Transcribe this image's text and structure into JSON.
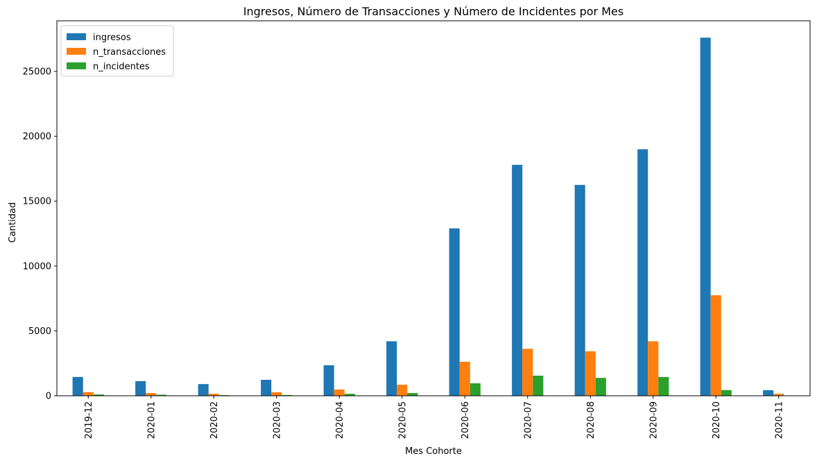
{
  "chart_data": {
    "type": "bar",
    "title": "Ingresos, Número de Transacciones y Número de Incidentes por Mes",
    "xlabel": "Mes Cohorte",
    "ylabel": "Cantidad",
    "ylim": [
      0,
      28900
    ],
    "yticks": [
      0,
      5000,
      10000,
      15000,
      20000,
      25000
    ],
    "legend_position": "top-left",
    "grid": false,
    "categories": [
      "2019-12",
      "2020-01",
      "2020-02",
      "2020-03",
      "2020-04",
      "2020-05",
      "2020-06",
      "2020-07",
      "2020-08",
      "2020-09",
      "2020-10",
      "2020-11"
    ],
    "series": [
      {
        "name": "ingresos",
        "color": "#1f77b4",
        "values": [
          1450,
          1130,
          900,
          1230,
          2350,
          4200,
          12900,
          17800,
          16250,
          19000,
          27600,
          430
        ]
      },
      {
        "name": "n_transacciones",
        "color": "#ff7f0e",
        "values": [
          280,
          210,
          160,
          270,
          480,
          850,
          2620,
          3620,
          3430,
          4200,
          7750,
          150
        ]
      },
      {
        "name": "n_incidentes",
        "color": "#2ca02c",
        "values": [
          100,
          80,
          50,
          60,
          150,
          210,
          960,
          1550,
          1380,
          1450,
          440,
          20
        ]
      }
    ]
  }
}
